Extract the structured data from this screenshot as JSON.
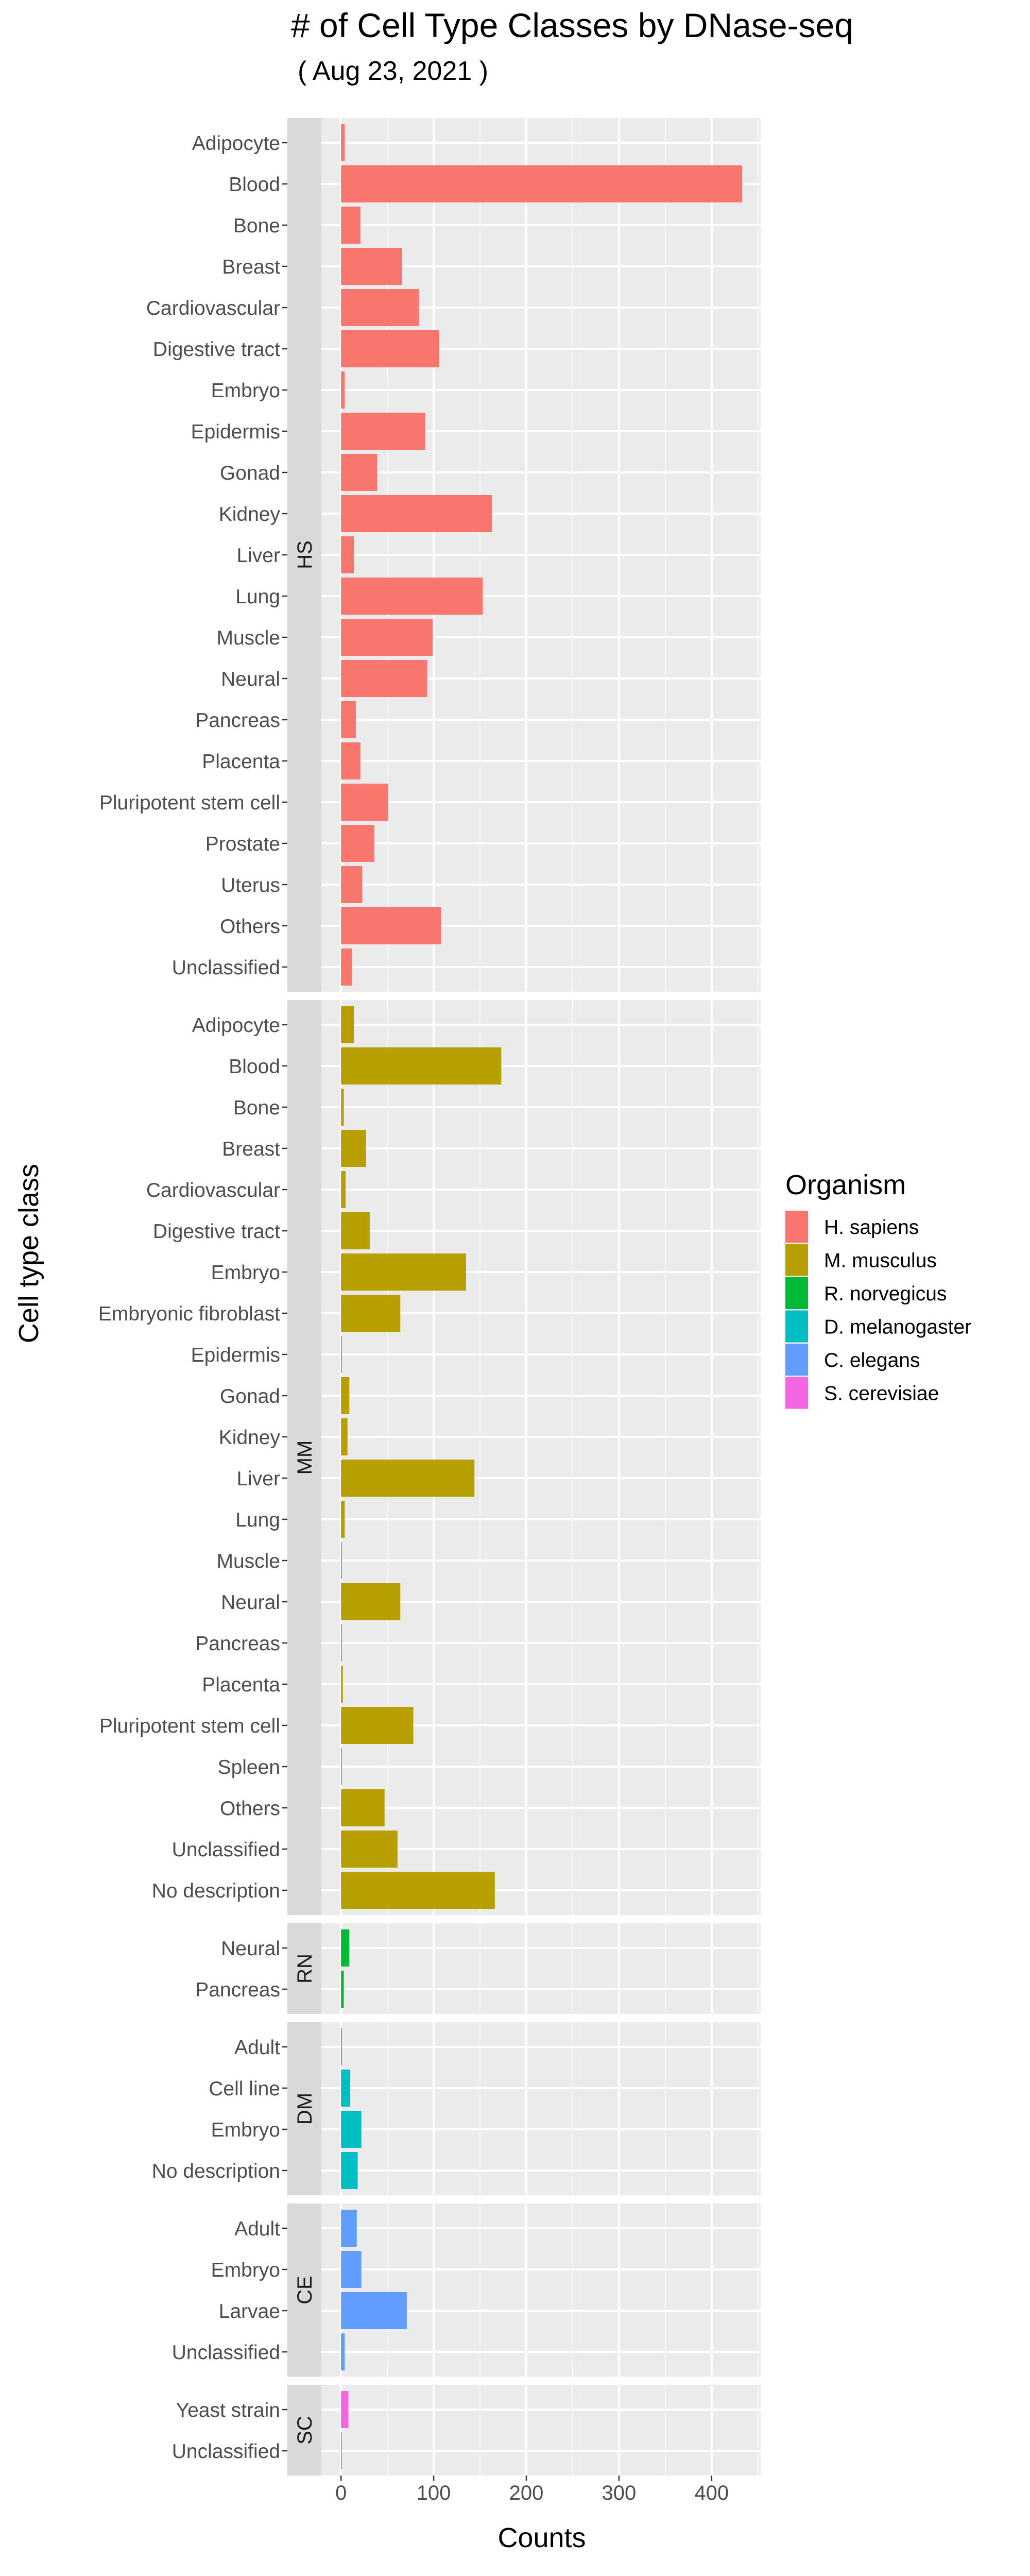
{
  "chart_data": {
    "type": "bar",
    "orientation": "horizontal",
    "title": "# of Cell Type Classes by DNase-seq",
    "subtitle": "( Aug 23, 2021 )",
    "xlabel": "Counts",
    "ylabel": "Cell type class",
    "xlim": [
      -21.2,
      452.9
    ],
    "xticks": [
      0,
      100,
      200,
      300,
      400
    ],
    "xtick_labels": [
      "0",
      "100",
      "200",
      "300",
      "400"
    ],
    "grid": true,
    "legend": {
      "title": "Organism",
      "position": "right",
      "entries": [
        {
          "label": "H. sapiens",
          "color": "#F8766D"
        },
        {
          "label": "M. musculus",
          "color": "#B79F00"
        },
        {
          "label": "R. norvegicus",
          "color": "#00BA38"
        },
        {
          "label": "D. melanogaster",
          "color": "#00BFC4"
        },
        {
          "label": "C. elegans",
          "color": "#619CFF"
        },
        {
          "label": "S. cerevisiae",
          "color": "#F564E3"
        }
      ]
    },
    "facets": [
      {
        "strip": "HS",
        "organism": "H. sapiens",
        "color": "#F8766D",
        "categories": [
          "Adipocyte",
          "Blood",
          "Bone",
          "Breast",
          "Cardiovascular",
          "Digestive tract",
          "Embryo",
          "Epidermis",
          "Gonad",
          "Kidney",
          "Liver",
          "Lung",
          "Muscle",
          "Neural",
          "Pancreas",
          "Placenta",
          "Pluripotent stem cell",
          "Prostate",
          "Uterus",
          "Others",
          "Unclassified"
        ],
        "values": [
          4,
          433,
          21,
          66,
          84,
          106,
          4,
          91,
          39,
          163,
          14,
          153,
          99,
          93,
          16,
          21,
          51,
          36,
          23,
          108,
          12
        ]
      },
      {
        "strip": "MM",
        "organism": "M. musculus",
        "color": "#B79F00",
        "categories": [
          "Adipocyte",
          "Blood",
          "Bone",
          "Breast",
          "Cardiovascular",
          "Digestive tract",
          "Embryo",
          "Embryonic fibroblast",
          "Epidermis",
          "Gonad",
          "Kidney",
          "Liver",
          "Lung",
          "Muscle",
          "Neural",
          "Pancreas",
          "Placenta",
          "Pluripotent stem cell",
          "Spleen",
          "Others",
          "Unclassified",
          "No description"
        ],
        "values": [
          14,
          173,
          3,
          27,
          5,
          31,
          135,
          64,
          1,
          9,
          7,
          144,
          4,
          1,
          64,
          1,
          2,
          78,
          1,
          47,
          61,
          166
        ]
      },
      {
        "strip": "RN",
        "organism": "R. norvegicus",
        "color": "#00BA38",
        "categories": [
          "Neural",
          "Pancreas"
        ],
        "values": [
          9,
          3
        ]
      },
      {
        "strip": "DM",
        "organism": "D. melanogaster",
        "color": "#00BFC4",
        "categories": [
          "Adult",
          "Cell line",
          "Embryo",
          "No description"
        ],
        "values": [
          1,
          10,
          22,
          18
        ]
      },
      {
        "strip": "CE",
        "organism": "C. elegans",
        "color": "#619CFF",
        "categories": [
          "Adult",
          "Embryo",
          "Larvae",
          "Unclassified"
        ],
        "values": [
          17,
          22,
          71,
          4
        ]
      },
      {
        "strip": "SC",
        "organism": "S. cerevisiae",
        "color": "#F564E3",
        "categories": [
          "Yeast strain",
          "Unclassified"
        ],
        "values": [
          8,
          1
        ]
      }
    ]
  }
}
